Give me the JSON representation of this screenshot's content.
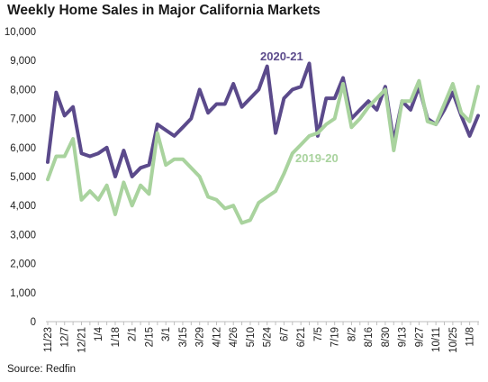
{
  "title": "Weekly Home Sales in Major California Markets",
  "source": "Source: Redfin",
  "colors": {
    "series_2020_21": "#5b4a8b",
    "series_2019_20": "#a9d39e",
    "axis": "#bfbfbf",
    "text": "#222222"
  },
  "chart_data": {
    "type": "line",
    "title": "Weekly Home Sales in Major California Markets",
    "xlabel": "",
    "ylabel": "",
    "ylim": [
      0,
      10000
    ],
    "yticks": [
      0,
      1000,
      2000,
      3000,
      4000,
      5000,
      6000,
      7000,
      8000,
      9000,
      10000
    ],
    "ytick_labels": [
      "0",
      "1,000",
      "2,000",
      "3,000",
      "4,000",
      "5,000",
      "6,000",
      "7,000",
      "8,000",
      "9,000",
      "10,000"
    ],
    "grid": false,
    "legend": "inline-labels",
    "categories": [
      "11/23",
      "11/30",
      "12/7",
      "12/14",
      "12/21",
      "12/28",
      "1/4",
      "1/11",
      "1/18",
      "1/25",
      "2/1",
      "2/8",
      "2/15",
      "2/22",
      "3/1",
      "3/8",
      "3/15",
      "3/22",
      "3/29",
      "4/5",
      "4/12",
      "4/19",
      "4/26",
      "5/3",
      "5/10",
      "5/17",
      "5/24",
      "5/31",
      "6/7",
      "6/14",
      "6/21",
      "6/28",
      "7/5",
      "7/12",
      "7/19",
      "7/26",
      "8/2",
      "8/9",
      "8/16",
      "8/23",
      "8/30",
      "9/6",
      "9/13",
      "9/20",
      "9/27",
      "10/4",
      "10/11",
      "10/18",
      "10/25",
      "11/1",
      "11/8",
      "11/15"
    ],
    "xtick_labels": [
      "11/23",
      "12/7",
      "12/21",
      "1/4",
      "1/18",
      "2/1",
      "2/15",
      "3/1",
      "3/15",
      "3/29",
      "4/12",
      "4/26",
      "5/10",
      "5/24",
      "6/7",
      "6/21",
      "7/5",
      "7/19",
      "8/2",
      "8/16",
      "8/30",
      "9/13",
      "9/27",
      "10/11",
      "10/25",
      "11/8"
    ],
    "series": [
      {
        "name": "2020-21",
        "color": "#5b4a8b",
        "values": [
          5500,
          7900,
          7100,
          7400,
          5800,
          5700,
          5800,
          6000,
          5000,
          5900,
          5000,
          5300,
          5400,
          6800,
          6600,
          6400,
          6700,
          7000,
          8000,
          7200,
          7500,
          7500,
          8200,
          7400,
          7700,
          8000,
          8800,
          6500,
          7700,
          8000,
          8100,
          8900,
          6400,
          7700,
          7700,
          8400,
          7000,
          7300,
          7600,
          7300,
          8100,
          6200,
          7600,
          7300,
          8100,
          7000,
          6800,
          7300,
          7900,
          7100,
          6400,
          7100
        ]
      },
      {
        "name": "2019-20",
        "color": "#a9d39e",
        "values": [
          4900,
          5700,
          5700,
          6300,
          4200,
          4500,
          4200,
          4700,
          3700,
          4800,
          4000,
          4700,
          4400,
          6500,
          5400,
          5600,
          5600,
          5300,
          5000,
          4300,
          4200,
          3900,
          4000,
          3400,
          3500,
          4100,
          4300,
          4500,
          5100,
          5800,
          6100,
          6400,
          6500,
          6800,
          7000,
          8200,
          6700,
          7000,
          7400,
          7700,
          8000,
          5900,
          7600,
          7600,
          8300,
          6900,
          6800,
          7500,
          8200,
          7200,
          6900,
          8100
        ]
      }
    ]
  }
}
